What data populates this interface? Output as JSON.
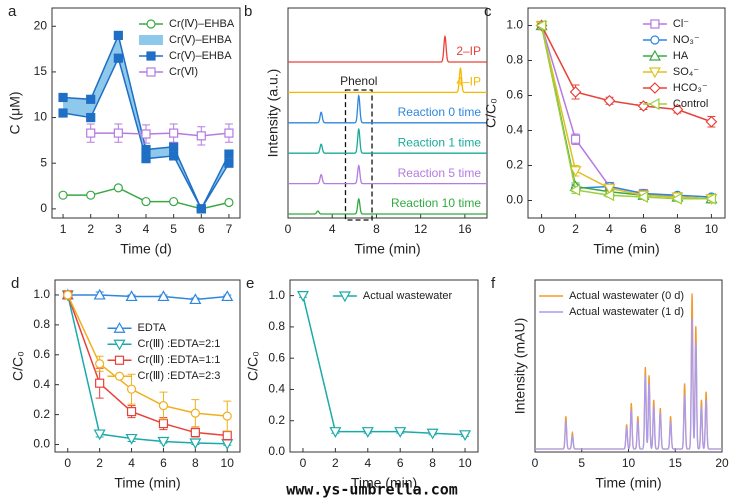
{
  "chart_data": [
    {
      "type": "line",
      "letter": "a",
      "xlabel": "Time (d)",
      "ylabel": "C (μM)",
      "x": [
        1,
        2,
        3,
        4,
        5,
        6,
        7
      ],
      "xlim": [
        0.6,
        7.4
      ],
      "xticks": [
        1,
        2,
        3,
        4,
        5,
        6,
        7
      ],
      "ylim": [
        -1,
        22
      ],
      "yticks": [
        0,
        5,
        10,
        15,
        20
      ],
      "legend": "upper right",
      "series": [
        {
          "name": "Cr(Ⅳ)–EHBA",
          "color": "#3aa845",
          "marker": "circle-open",
          "values": [
            1.5,
            1.5,
            2.3,
            0.8,
            0.8,
            0,
            0.7
          ]
        },
        {
          "name": "Cr(Ⅴ)–EHBA",
          "color": "#8ec9ec",
          "style": "band"
        },
        {
          "name": "Cr(Ⅴ)–EHBA",
          "color": "#1f6fc5",
          "marker": "square-filled",
          "values": [
            12.2,
            12.0,
            19.0,
            6.5,
            6.8,
            0,
            6.0
          ],
          "lower": [
            10.5,
            10.0,
            16.5,
            5.5,
            5.8,
            0,
            5.0
          ]
        },
        {
          "name": "Cr(Ⅵ)",
          "color": "#b57be0",
          "marker": "square-open",
          "values": [
            null,
            8.3,
            8.3,
            8.2,
            8.3,
            8.0,
            8.3
          ],
          "errors": [
            null,
            1,
            1,
            1,
            1,
            1,
            1
          ]
        }
      ]
    },
    {
      "type": "chromatogram",
      "letter": "b",
      "xlabel": "Time (min)",
      "ylabel": "Intensity (a.u.)",
      "xlim": [
        0,
        18
      ],
      "xticks": [
        0,
        4,
        8,
        12,
        16
      ],
      "stacked": true,
      "annotation": {
        "text": "Phenol",
        "x_range": [
          5.2,
          7.6
        ]
      },
      "series": [
        {
          "name": "2–IP",
          "color": "#e8413a",
          "peaks": [
            {
              "t": 14.2,
              "h": 0.85
            }
          ]
        },
        {
          "name": "4–IP",
          "color": "#f5b800",
          "peaks": [
            {
              "t": 15.6,
              "h": 0.8
            }
          ]
        },
        {
          "name": "Reaction 0 time",
          "color": "#2e86de",
          "peaks": [
            {
              "t": 3.0,
              "h": 0.35
            },
            {
              "t": 6.4,
              "h": 0.9
            }
          ]
        },
        {
          "name": "Reaction 1 time",
          "color": "#1aaa9a",
          "peaks": [
            {
              "t": 3.0,
              "h": 0.3
            },
            {
              "t": 6.4,
              "h": 0.8
            }
          ]
        },
        {
          "name": "Reaction 5 time",
          "color": "#b57be0",
          "peaks": [
            {
              "t": 3.0,
              "h": 0.3
            },
            {
              "t": 6.4,
              "h": 0.6
            }
          ]
        },
        {
          "name": "Reaction 10 time",
          "color": "#2eaa3e",
          "peaks": [
            {
              "t": 2.7,
              "h": 0.1
            },
            {
              "t": 6.4,
              "h": 0.5
            }
          ]
        }
      ]
    },
    {
      "type": "line",
      "letter": "c",
      "xlabel": "Time (min)",
      "ylabel": "C/C₀",
      "x": [
        0,
        2,
        4,
        6,
        8,
        10
      ],
      "xlim": [
        -0.8,
        10.8
      ],
      "xticks": [
        0,
        2,
        4,
        6,
        8,
        10
      ],
      "ylim": [
        -0.1,
        1.1
      ],
      "yticks": [
        {
          "value": 0,
          "label": "0.0"
        },
        0.2,
        0.4,
        0.6,
        0.8,
        {
          "value": 1,
          "label": "1.0"
        }
      ],
      "legend": "upper right",
      "series": [
        {
          "name": "Cl⁻",
          "color": "#b57be0",
          "marker": "square-open",
          "values": [
            1.0,
            0.35,
            0.08,
            0.04,
            0.02,
            0.01
          ],
          "errors": [
            0.02,
            0.03,
            0.02,
            0.01,
            0.01,
            0.01
          ]
        },
        {
          "name": "NO₃⁻",
          "color": "#2e86de",
          "marker": "circle-open",
          "values": [
            1.0,
            0.07,
            0.08,
            0.04,
            0.03,
            0.02
          ],
          "errors": [
            0.02,
            0.02,
            0.02,
            0.01,
            0.01,
            0.01
          ]
        },
        {
          "name": "HA",
          "color": "#3aa845",
          "marker": "triangle-up-open",
          "values": [
            1.0,
            0.08,
            0.05,
            0.03,
            0.02,
            0.01
          ],
          "errors": [
            0.02,
            0.02,
            0.01,
            0.01,
            0.01,
            0.01
          ]
        },
        {
          "name": "SO₄⁻",
          "color": "#e0c020",
          "marker": "triangle-down-open",
          "values": [
            1.0,
            0.17,
            0.07,
            0.03,
            0.02,
            0.01
          ],
          "errors": [
            0.02,
            0.03,
            0.02,
            0.01,
            0.01,
            0.01
          ]
        },
        {
          "name": "HCO₃⁻",
          "color": "#e8413a",
          "marker": "diamond-open",
          "values": [
            1.0,
            0.62,
            0.57,
            0.54,
            0.52,
            0.45
          ],
          "errors": [
            0.02,
            0.04,
            0.02,
            0.02,
            0.02,
            0.03
          ]
        },
        {
          "name": "Control",
          "color": "#9ccf3a",
          "marker": "triangle-left-open",
          "values": [
            1.0,
            0.06,
            0.03,
            0.02,
            0.01,
            0.01
          ],
          "errors": [
            0.02,
            0.02,
            0.01,
            0.01,
            0.01,
            0.01
          ]
        }
      ]
    },
    {
      "type": "line",
      "letter": "d",
      "xlabel": "Time (min)",
      "ylabel": "C/C₀",
      "x": [
        0,
        2,
        4,
        6,
        8,
        10
      ],
      "xlim": [
        -0.8,
        10.8
      ],
      "xticks": [
        0,
        2,
        4,
        6,
        8,
        10
      ],
      "ylim": [
        -0.05,
        1.1
      ],
      "yticks": [
        {
          "value": 0,
          "label": "0.0"
        },
        0.2,
        0.4,
        0.6,
        0.8,
        {
          "value": 1,
          "label": "1.0"
        }
      ],
      "legend": "center right",
      "series": [
        {
          "name": "EDTA",
          "color": "#2e86de",
          "marker": "triangle-up-open",
          "values": [
            1.0,
            1.0,
            0.99,
            0.99,
            0.97,
            0.99
          ],
          "errors": [
            0.01,
            0.02,
            0.01,
            0.01,
            0.01,
            0.01
          ]
        },
        {
          "name": "Cr(Ⅲ) :EDTA=2:1",
          "color": "#1aaaaa",
          "marker": "triangle-down-open",
          "values": [
            1.0,
            0.07,
            0.04,
            0.02,
            0.01,
            0.005
          ],
          "errors": [
            0.01,
            0.02,
            0.02,
            0.01,
            0.01,
            0.01
          ]
        },
        {
          "name": "Cr(Ⅲ) :EDTA=1:1",
          "color": "#e8413a",
          "marker": "square-open",
          "values": [
            1.0,
            0.41,
            0.22,
            0.14,
            0.08,
            0.06
          ],
          "errors": [
            0.01,
            0.1,
            0.04,
            0.04,
            0.03,
            0.03
          ]
        },
        {
          "name": "Cr(Ⅲ) :EDTA=2:3",
          "color": "#f0b020",
          "marker": "circle-open",
          "values": [
            1.0,
            0.54,
            0.37,
            0.26,
            0.21,
            0.19
          ],
          "errors": [
            0.01,
            0.05,
            0.1,
            0.09,
            0.09,
            0.1
          ]
        }
      ]
    },
    {
      "type": "line",
      "letter": "e",
      "xlabel": "Time (min)",
      "ylabel": "C/C₀",
      "x": [
        0,
        2,
        4,
        6,
        8,
        10
      ],
      "xlim": [
        -0.8,
        10.8
      ],
      "xticks": [
        0,
        2,
        4,
        6,
        8,
        10
      ],
      "ylim": [
        0,
        1.1
      ],
      "yticks": [
        {
          "value": 0,
          "label": "0.0"
        },
        0.2,
        0.4,
        0.6,
        0.8,
        {
          "value": 1,
          "label": "1.0"
        }
      ],
      "legend": "upper right",
      "series": [
        {
          "name": "Actual wastewater",
          "color": "#1aaaaa",
          "marker": "triangle-down-open",
          "values": [
            1.0,
            0.13,
            0.13,
            0.13,
            0.12,
            0.11
          ],
          "errors": [
            0.01,
            0.01,
            0.01,
            0.01,
            0.01,
            0.01
          ]
        }
      ]
    },
    {
      "type": "chromatogram",
      "letter": "f",
      "xlabel": "Time (min)",
      "ylabel": "Intensity (mAU)",
      "xlim": [
        0,
        20
      ],
      "xticks": [
        0,
        5,
        10,
        15,
        20
      ],
      "ylim": [
        0,
        1.05
      ],
      "legend": "upper right",
      "series": [
        {
          "name": "Actual wastewater (0 d)",
          "color": "#f39a2e",
          "peaks": [
            {
              "t": 3.3,
              "h": 0.2
            },
            {
              "t": 4.0,
              "h": 0.1
            },
            {
              "t": 9.8,
              "h": 0.15
            },
            {
              "t": 10.3,
              "h": 0.28
            },
            {
              "t": 11.0,
              "h": 0.2
            },
            {
              "t": 11.8,
              "h": 0.5
            },
            {
              "t": 12.2,
              "h": 0.45
            },
            {
              "t": 12.7,
              "h": 0.3
            },
            {
              "t": 13.4,
              "h": 0.25
            },
            {
              "t": 14.5,
              "h": 0.2
            },
            {
              "t": 16.0,
              "h": 0.4
            },
            {
              "t": 16.8,
              "h": 0.95
            },
            {
              "t": 17.2,
              "h": 0.75
            },
            {
              "t": 17.8,
              "h": 0.3
            },
            {
              "t": 18.3,
              "h": 0.35
            }
          ]
        },
        {
          "name": "Actual wastewater (1 d)",
          "color": "#a99bf0",
          "peaks": [
            {
              "t": 3.3,
              "h": 0.17
            },
            {
              "t": 4.0,
              "h": 0.08
            },
            {
              "t": 9.8,
              "h": 0.13
            },
            {
              "t": 10.3,
              "h": 0.24
            },
            {
              "t": 11.0,
              "h": 0.17
            },
            {
              "t": 11.8,
              "h": 0.45
            },
            {
              "t": 12.2,
              "h": 0.4
            },
            {
              "t": 12.7,
              "h": 0.26
            },
            {
              "t": 13.4,
              "h": 0.22
            },
            {
              "t": 14.5,
              "h": 0.17
            },
            {
              "t": 16.0,
              "h": 0.33
            },
            {
              "t": 16.8,
              "h": 0.8
            },
            {
              "t": 17.2,
              "h": 0.65
            },
            {
              "t": 17.8,
              "h": 0.26
            },
            {
              "t": 18.3,
              "h": 0.3
            }
          ]
        }
      ]
    }
  ],
  "watermark": "www.ys-umbrella.com"
}
